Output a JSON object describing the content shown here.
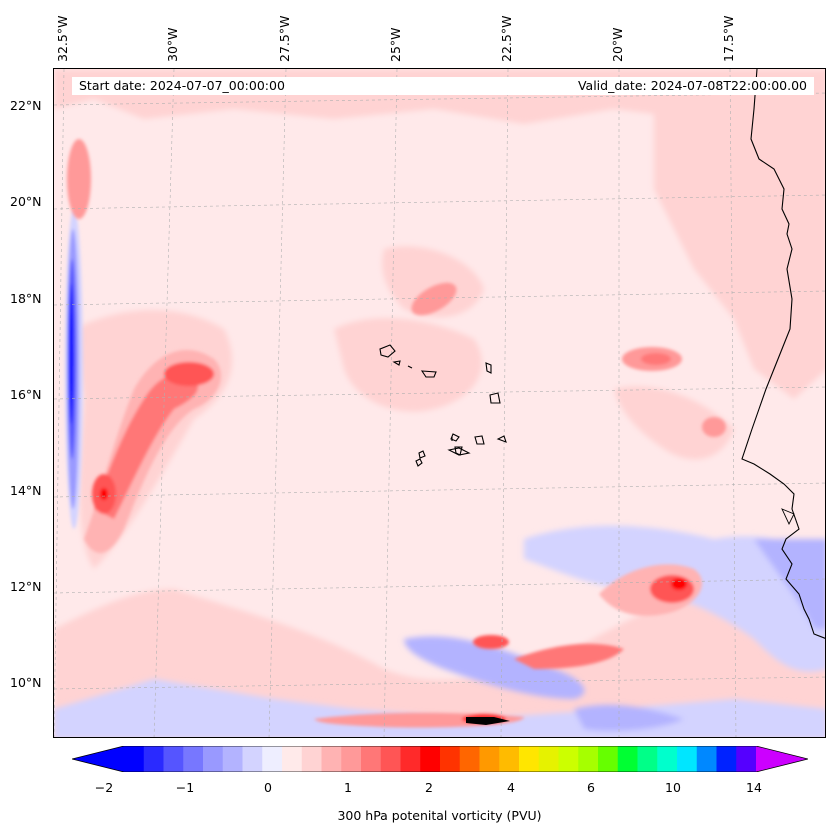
{
  "header": {
    "start_date": "Start date: 2024-07-07_00:00:00",
    "valid_date": "Valid_date: 2024-07-08T22:00:00.00"
  },
  "lon_labels": [
    "32.5°W",
    "30°W",
    "27.5°W",
    "25°W",
    "22.5°W",
    "20°W",
    "17.5°W"
  ],
  "lat_labels": [
    "22°N",
    "20°N",
    "18°N",
    "16°N",
    "14°N",
    "12°N",
    "10°N"
  ],
  "colorbar": {
    "title": "300 hPa potenital vorticity (PVU)",
    "tick_labels": [
      "−2",
      "−1",
      "0",
      "1",
      "2",
      "4",
      "6",
      "10",
      "14"
    ],
    "colors": [
      "#0000ff",
      "#2a2aff",
      "#5555ff",
      "#7777ff",
      "#9999ff",
      "#b3b3ff",
      "#d3d3ff",
      "#eeeeff",
      "#ffeaea",
      "#ffd3d3",
      "#ffb3b3",
      "#ff9999",
      "#ff7777",
      "#ff5555",
      "#ff2a2a",
      "#ff0000",
      "#ff3300",
      "#ff6600",
      "#ff9900",
      "#ffbb00",
      "#ffe600",
      "#e6f200",
      "#ccff00",
      "#a6ff00",
      "#66ff00",
      "#00ff33",
      "#00ff88",
      "#00ffcc",
      "#00e6ff",
      "#0088ff",
      "#0022ff",
      "#5500ff",
      "#9900ff"
    ],
    "extend_low_color": "#0000ff",
    "extend_high_color": "#cc00ff"
  },
  "colors": {
    "background_pv": "#ffe9ea",
    "coastline": "#000000",
    "gridline": "#b0b0b0"
  }
}
